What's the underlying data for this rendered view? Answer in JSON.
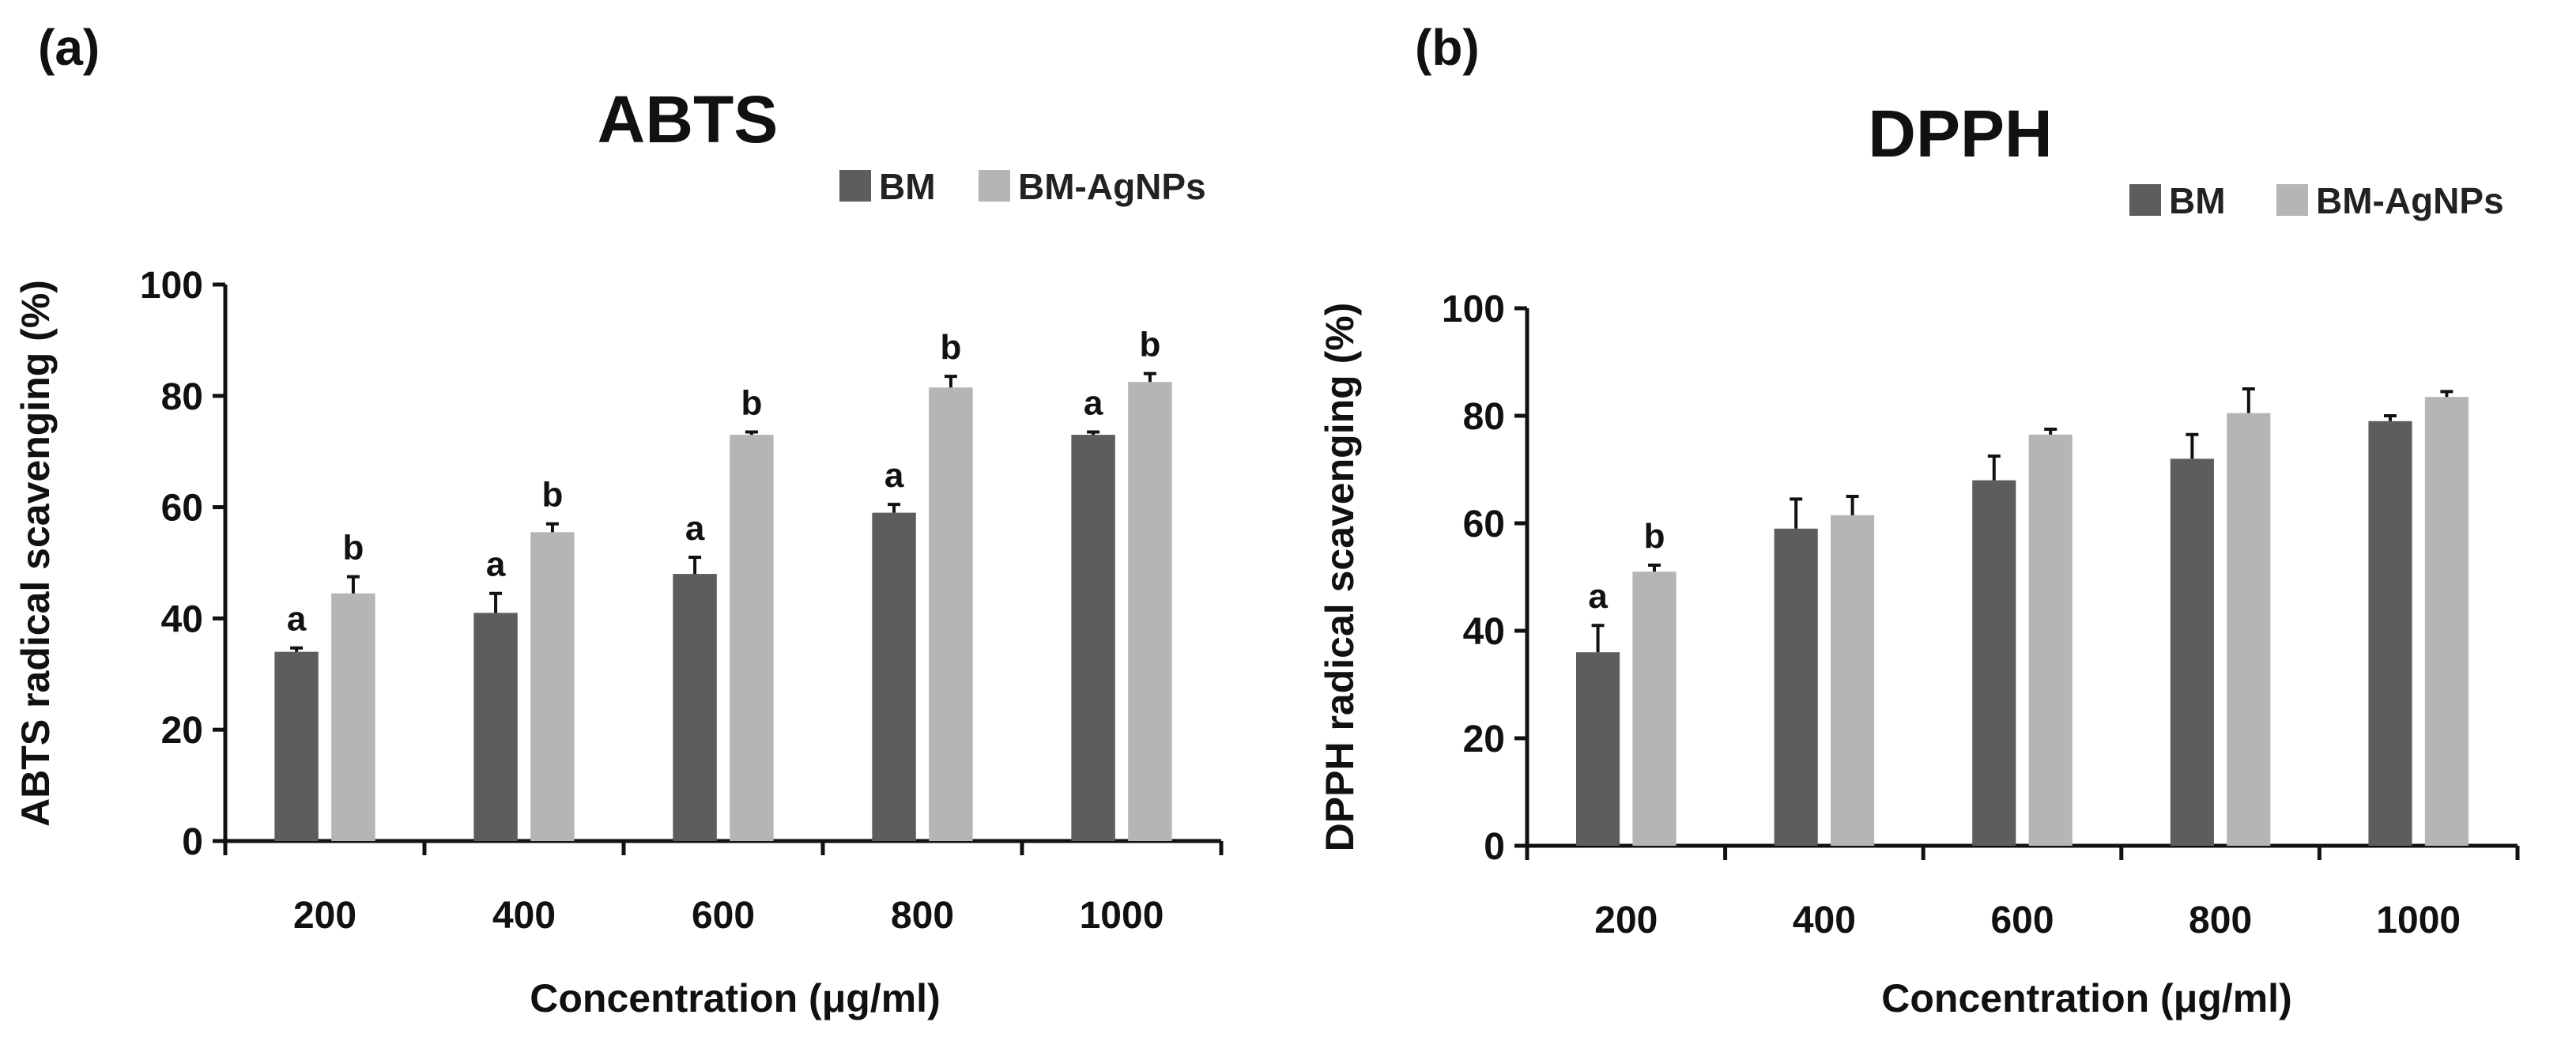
{
  "colors": {
    "bm": "#5d5d5d",
    "bm_agnps": "#b5b5b5",
    "axis": "#111111"
  },
  "chart_data": [
    {
      "type": "bar",
      "panel": "(a)",
      "title": "ABTS",
      "xlabel": "Concentration (μg/ml)",
      "ylabel": "ABTS radical scavenging (%)",
      "ylim": [
        0,
        100
      ],
      "yticks": [
        "0",
        "20",
        "40",
        "60",
        "80",
        "100"
      ],
      "categories": [
        "200",
        "400",
        "600",
        "800",
        "1000"
      ],
      "legend": [
        "BM",
        "BM-AgNPs"
      ],
      "series": [
        {
          "name": "BM",
          "values": [
            34,
            41,
            48,
            59,
            73
          ],
          "errors": [
            0.7,
            3.5,
            3.0,
            1.5,
            0.5
          ],
          "labels": [
            "a",
            "a",
            "a",
            "a",
            "a"
          ]
        },
        {
          "name": "BM-AgNPs",
          "values": [
            44.5,
            55.5,
            73,
            81.5,
            82.5
          ],
          "errors": [
            3.0,
            1.5,
            0.5,
            2.0,
            1.5
          ],
          "labels": [
            "b",
            "b",
            "b",
            "b",
            "b"
          ]
        }
      ]
    },
    {
      "type": "bar",
      "panel": "(b)",
      "title": "DPPH",
      "xlabel": "Concentration (μg/ml)",
      "ylabel": "DPPH radical scavenging (%)",
      "ylim": [
        0,
        100
      ],
      "yticks": [
        "0",
        "20",
        "40",
        "60",
        "80",
        "100"
      ],
      "categories": [
        "200",
        "400",
        "600",
        "800",
        "1000"
      ],
      "legend": [
        "BM",
        "BM-AgNPs"
      ],
      "series": [
        {
          "name": "BM",
          "values": [
            36,
            59,
            68,
            72,
            79
          ],
          "errors": [
            5.0,
            5.5,
            4.5,
            4.5,
            1.0
          ],
          "labels": [
            "a",
            "",
            "",
            "",
            ""
          ]
        },
        {
          "name": "BM-AgNPs",
          "values": [
            51,
            61.5,
            76.5,
            80.5,
            83.5
          ],
          "errors": [
            1.2,
            3.5,
            1.0,
            4.5,
            1.0
          ],
          "labels": [
            "b",
            "",
            "",
            "",
            ""
          ]
        }
      ]
    }
  ]
}
